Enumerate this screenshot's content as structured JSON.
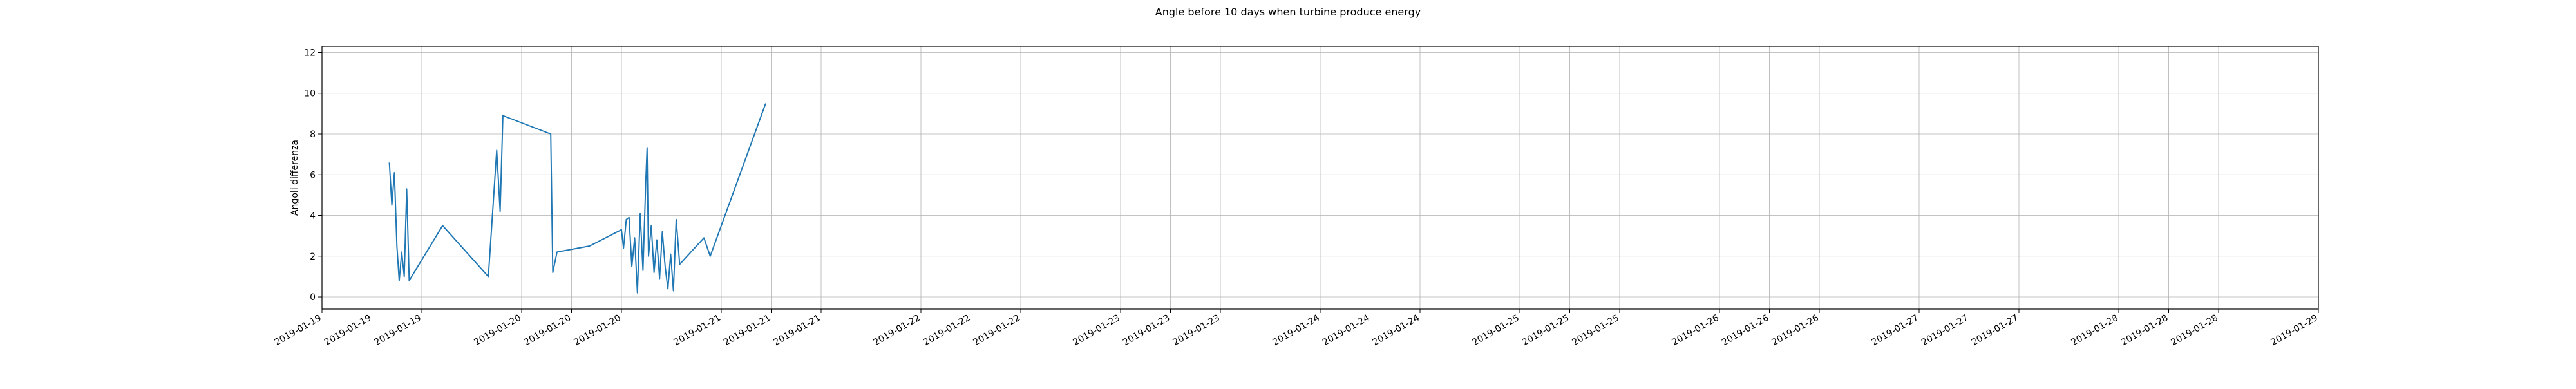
{
  "chart_data": {
    "type": "line",
    "title": "Angle before 10 days when turbine produce energy",
    "xlabel": "",
    "ylabel": "Angoli differenza",
    "grid": true,
    "line_color": "#1f77b4",
    "x_range": [
      "2019-01-19 00:00",
      "2019-01-29 00:00"
    ],
    "ylim": [
      -0.6,
      12.3
    ],
    "yticks": [
      0,
      2,
      4,
      6,
      8,
      10,
      12
    ],
    "xticks": [
      {
        "t": "2019-01-19 00:00",
        "label": "2019-01-19"
      },
      {
        "t": "2019-01-19 06:00",
        "label": "2019-01-19"
      },
      {
        "t": "2019-01-19 12:00",
        "label": "2019-01-19"
      },
      {
        "t": "2019-01-20 00:00",
        "label": "2019-01-20"
      },
      {
        "t": "2019-01-20 06:00",
        "label": "2019-01-20"
      },
      {
        "t": "2019-01-20 12:00",
        "label": "2019-01-20"
      },
      {
        "t": "2019-01-21 00:00",
        "label": "2019-01-21"
      },
      {
        "t": "2019-01-21 06:00",
        "label": "2019-01-21"
      },
      {
        "t": "2019-01-21 12:00",
        "label": "2019-01-21"
      },
      {
        "t": "2019-01-22 00:00",
        "label": "2019-01-22"
      },
      {
        "t": "2019-01-22 06:00",
        "label": "2019-01-22"
      },
      {
        "t": "2019-01-22 12:00",
        "label": "2019-01-22"
      },
      {
        "t": "2019-01-23 00:00",
        "label": "2019-01-23"
      },
      {
        "t": "2019-01-23 06:00",
        "label": "2019-01-23"
      },
      {
        "t": "2019-01-23 12:00",
        "label": "2019-01-23"
      },
      {
        "t": "2019-01-24 00:00",
        "label": "2019-01-24"
      },
      {
        "t": "2019-01-24 06:00",
        "label": "2019-01-24"
      },
      {
        "t": "2019-01-24 12:00",
        "label": "2019-01-24"
      },
      {
        "t": "2019-01-25 00:00",
        "label": "2019-01-25"
      },
      {
        "t": "2019-01-25 06:00",
        "label": "2019-01-25"
      },
      {
        "t": "2019-01-25 12:00",
        "label": "2019-01-25"
      },
      {
        "t": "2019-01-26 00:00",
        "label": "2019-01-26"
      },
      {
        "t": "2019-01-26 06:00",
        "label": "2019-01-26"
      },
      {
        "t": "2019-01-26 12:00",
        "label": "2019-01-26"
      },
      {
        "t": "2019-01-27 00:00",
        "label": "2019-01-27"
      },
      {
        "t": "2019-01-27 06:00",
        "label": "2019-01-27"
      },
      {
        "t": "2019-01-27 12:00",
        "label": "2019-01-27"
      },
      {
        "t": "2019-01-28 00:00",
        "label": "2019-01-28"
      },
      {
        "t": "2019-01-28 06:00",
        "label": "2019-01-28"
      },
      {
        "t": "2019-01-28 12:00",
        "label": "2019-01-28"
      },
      {
        "t": "2019-01-29 00:00",
        "label": "2019-01-29"
      }
    ],
    "series": [
      {
        "points": [
          [
            "2019-01-19 08:06",
            6.6
          ],
          [
            "2019-01-19 08:24",
            4.5
          ],
          [
            "2019-01-19 08:42",
            6.1
          ],
          [
            "2019-01-19 09:00",
            2.5
          ],
          [
            "2019-01-19 09:17",
            0.8
          ],
          [
            "2019-01-19 09:35",
            2.2
          ],
          [
            "2019-01-19 09:53",
            1.0
          ],
          [
            "2019-01-19 10:11",
            5.3
          ],
          [
            "2019-01-19 10:29",
            0.8
          ],
          [
            "2019-01-19 14:30",
            3.5
          ],
          [
            "2019-01-19 20:00",
            1.0
          ],
          [
            "2019-01-19 21:00",
            7.2
          ],
          [
            "2019-01-19 21:25",
            4.2
          ],
          [
            "2019-01-19 21:45",
            8.9
          ],
          [
            "2019-01-20 03:30",
            8.0
          ],
          [
            "2019-01-20 03:45",
            1.2
          ],
          [
            "2019-01-20 04:15",
            2.2
          ],
          [
            "2019-01-20 08:10",
            2.5
          ],
          [
            "2019-01-20 12:00",
            3.3
          ],
          [
            "2019-01-20 12:15",
            2.4
          ],
          [
            "2019-01-20 12:35",
            3.8
          ],
          [
            "2019-01-20 12:55",
            3.9
          ],
          [
            "2019-01-20 13:15",
            1.5
          ],
          [
            "2019-01-20 13:35",
            2.9
          ],
          [
            "2019-01-20 13:55",
            0.2
          ],
          [
            "2019-01-20 14:15",
            4.1
          ],
          [
            "2019-01-20 14:35",
            1.3
          ],
          [
            "2019-01-20 14:55",
            5.6
          ],
          [
            "2019-01-20 15:05",
            7.3
          ],
          [
            "2019-01-20 15:15",
            2.0
          ],
          [
            "2019-01-20 15:35",
            3.5
          ],
          [
            "2019-01-20 15:55",
            1.2
          ],
          [
            "2019-01-20 16:15",
            2.8
          ],
          [
            "2019-01-20 16:35",
            0.9
          ],
          [
            "2019-01-20 16:55",
            3.2
          ],
          [
            "2019-01-20 17:15",
            1.5
          ],
          [
            "2019-01-20 17:35",
            0.4
          ],
          [
            "2019-01-20 17:55",
            2.1
          ],
          [
            "2019-01-20 18:15",
            0.3
          ],
          [
            "2019-01-20 18:35",
            3.8
          ],
          [
            "2019-01-20 19:00",
            1.6
          ],
          [
            "2019-01-20 21:55",
            2.9
          ],
          [
            "2019-01-20 22:40",
            2.0
          ],
          [
            "2019-01-21 05:20",
            9.5
          ]
        ]
      }
    ]
  }
}
